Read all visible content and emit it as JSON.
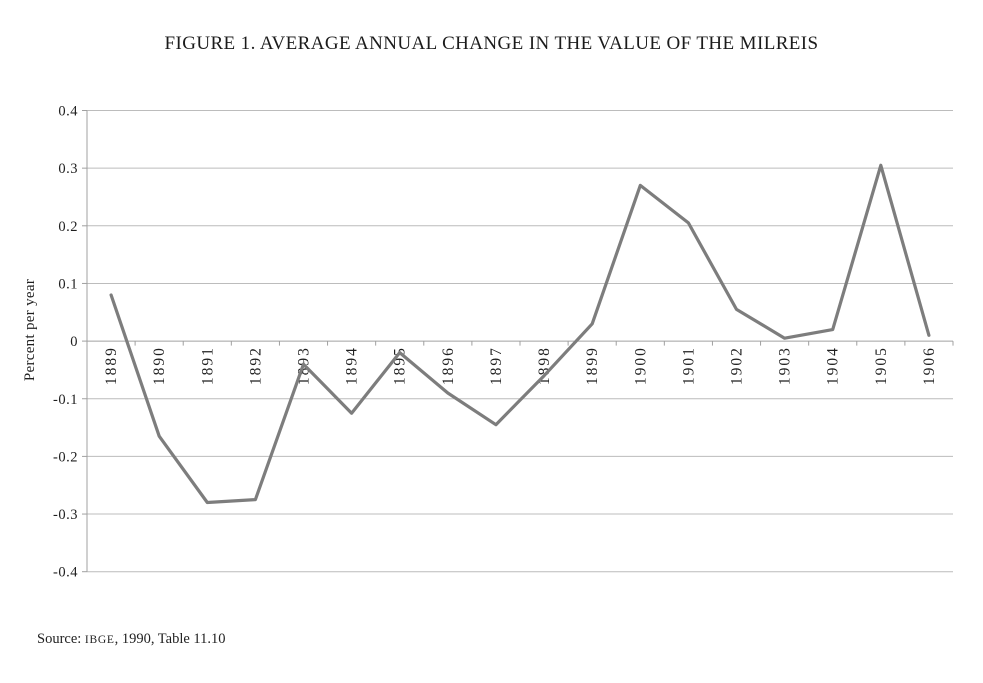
{
  "page": {
    "title": "FIGURE 1. AVERAGE ANNUAL CHANGE IN THE VALUE OF THE MILREIS",
    "source": {
      "prefix": "Source: ",
      "abbr": "IBGE",
      "suffix": ", 1990, Table 11.10"
    }
  },
  "chart_data": {
    "type": "line",
    "title": "FIGURE 1. AVERAGE ANNUAL CHANGE IN THE VALUE OF THE MILREIS",
    "categories": [
      "1889",
      "1890",
      "1891",
      "1892",
      "1893",
      "1894",
      "1895",
      "1896",
      "1897",
      "1898",
      "1899",
      "1900",
      "1901",
      "1902",
      "1903",
      "1904",
      "1905",
      "1906"
    ],
    "values": [
      0.08,
      -0.165,
      -0.28,
      -0.275,
      -0.04,
      -0.125,
      -0.02,
      -0.09,
      -0.145,
      -0.06,
      0.03,
      0.27,
      0.205,
      0.055,
      0.005,
      0.02,
      0.305,
      0.01
    ],
    "xlabel": "",
    "ylabel": "Percent per year",
    "ylim": [
      -0.4,
      0.4
    ],
    "ytick_labels": [
      "0.4",
      "0.3",
      "0.2",
      "0.1",
      "0",
      "-0.1",
      "-0.2",
      "-0.3",
      "-0.4"
    ],
    "grid": true,
    "legend": false,
    "source_note": "Source: IBGE, 1990, Table 11.10",
    "colors": {
      "line": "#7d7d7d",
      "grid": "#bcbcbc",
      "axis": "#a0a0a0",
      "text": "#1f1f1f"
    }
  }
}
